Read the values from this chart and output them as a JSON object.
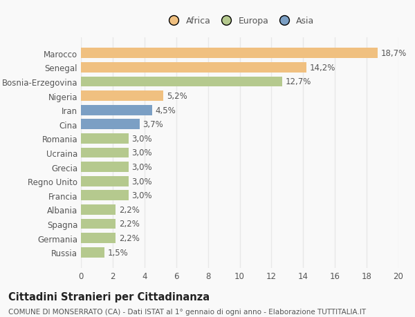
{
  "categories": [
    "Russia",
    "Germania",
    "Spagna",
    "Albania",
    "Francia",
    "Regno Unito",
    "Grecia",
    "Ucraina",
    "Romania",
    "Cina",
    "Iran",
    "Nigeria",
    "Bosnia-Erzegovina",
    "Senegal",
    "Marocco"
  ],
  "values": [
    1.5,
    2.2,
    2.2,
    2.2,
    3.0,
    3.0,
    3.0,
    3.0,
    3.0,
    3.7,
    4.5,
    5.2,
    12.7,
    14.2,
    18.7
  ],
  "colors": [
    "#b5c98e",
    "#b5c98e",
    "#b5c98e",
    "#b5c98e",
    "#b5c98e",
    "#b5c98e",
    "#b5c98e",
    "#b5c98e",
    "#b5c98e",
    "#7b9fc4",
    "#7b9fc4",
    "#f0c080",
    "#b5c98e",
    "#f0c080",
    "#f0c080"
  ],
  "labels": [
    "1,5%",
    "2,2%",
    "2,2%",
    "2,2%",
    "3,0%",
    "3,0%",
    "3,0%",
    "3,0%",
    "3,0%",
    "3,7%",
    "4,5%",
    "5,2%",
    "12,7%",
    "14,2%",
    "18,7%"
  ],
  "legend": [
    {
      "label": "Africa",
      "color": "#f0c080"
    },
    {
      "label": "Europa",
      "color": "#b5c98e"
    },
    {
      "label": "Asia",
      "color": "#7b9fc4"
    }
  ],
  "xlim": [
    0,
    20
  ],
  "xticks": [
    0,
    2,
    4,
    6,
    8,
    10,
    12,
    14,
    16,
    18,
    20
  ],
  "title_bold": "Cittadini Stranieri per Cittadinanza",
  "subtitle": "COMUNE DI MONSERRATO (CA) - Dati ISTAT al 1° gennaio di ogni anno - Elaborazione TUTTITALIA.IT",
  "background_color": "#f9f9f9",
  "grid_color": "#e8e8e8",
  "bar_height": 0.72,
  "label_fontsize": 8.5,
  "tick_fontsize": 8.5,
  "title_fontsize": 10.5,
  "subtitle_fontsize": 7.5,
  "text_color": "#555555",
  "legend_fontsize": 9
}
